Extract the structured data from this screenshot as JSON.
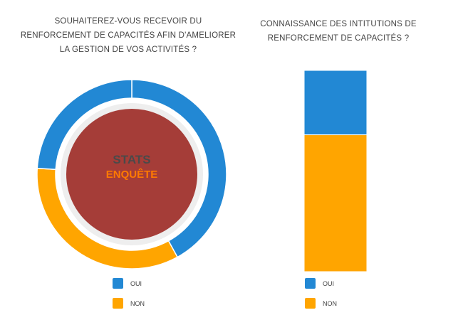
{
  "colors": {
    "oui": "#2288d4",
    "non": "#ffa500",
    "center": "#a53d38",
    "ring_bg": "#e5e5e5"
  },
  "left": {
    "title_lines": [
      "SOUHAITEREZ-VOUS RECEVOIR DU",
      "RENFORCEMENT DE CAPACITÉS AFIN D'AMELIORER",
      "LA GESTION DE VOS ACTIVITÉS ?"
    ],
    "center_text_1": "STATS",
    "center_text_2": "ENQUÊTE"
  },
  "right": {
    "title_lines": [
      "CONNAISSANCE DES INTITUTIONS DE",
      "RENFORCEMENT DE CAPACITÉS ?"
    ]
  },
  "legend": [
    {
      "label": "OUI",
      "color": "#2288d4"
    },
    {
      "label": "NON",
      "color": "#ffa500"
    }
  ],
  "chart_data": [
    {
      "type": "pie",
      "categories": [
        "OUI",
        "NON"
      ],
      "values": [
        66,
        34
      ],
      "title": "SOUHAITEREZ-VOUS RECEVOIR DU RENFORCEMENT DE CAPACITÉS AFIN D'AMELIORER LA GESTION DE VOS ACTIVITÉS ?"
    },
    {
      "type": "bar",
      "stacked": true,
      "categories": [
        ""
      ],
      "series": [
        {
          "name": "OUI",
          "values": [
            32
          ]
        },
        {
          "name": "NON",
          "values": [
            68
          ]
        }
      ],
      "title": "CONNAISSANCE DES INTITUTIONS DE RENFORCEMENT DE CAPACITÉS ?"
    }
  ]
}
